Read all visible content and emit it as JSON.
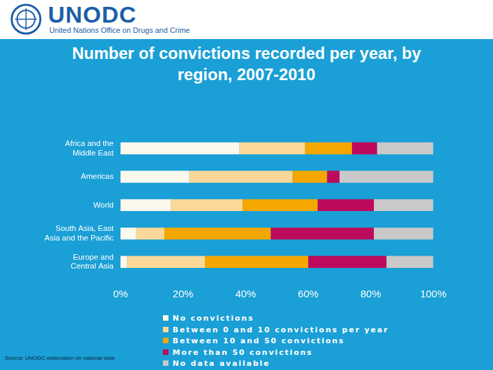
{
  "page": {
    "logo_name": "UNODC",
    "logo_subtitle": "United Nations Office on Drugs and Crime",
    "source": "Source: UNODC elaboration on national data"
  },
  "chart_data": {
    "type": "bar",
    "orientation": "horizontal",
    "stacked": true,
    "grid": false,
    "legend": "bottom",
    "title": "Number of convictions recorded per year, by region, 2007-2010",
    "categories": [
      "Africa and the Middle East",
      "Americas",
      "World",
      "South Asia, East Asia and the Pacific",
      "Europe and Central Asia"
    ],
    "series": [
      {
        "name": "No convictions",
        "color": "#fdf8ee",
        "values": [
          38,
          22,
          16,
          5,
          2
        ]
      },
      {
        "name": "Between 0 and 10 convictions per year",
        "color": "#fcd898",
        "values": [
          21,
          33,
          23,
          9,
          25
        ]
      },
      {
        "name": "Between 10 and 50 convictions",
        "color": "#f4a700",
        "values": [
          15,
          11,
          24,
          34,
          33
        ]
      },
      {
        "name": "More than 50 convictions",
        "color": "#be0a5c",
        "values": [
          8,
          4,
          18,
          33,
          25
        ]
      },
      {
        "name": "No data available",
        "color": "#c9c9c9",
        "values": [
          18,
          30,
          19,
          19,
          15
        ]
      }
    ],
    "xlim": [
      0,
      100
    ],
    "xticks": [
      {
        "value": 0,
        "label": "0%"
      },
      {
        "value": 20,
        "label": "20%"
      },
      {
        "value": 40,
        "label": "40%"
      },
      {
        "value": 60,
        "label": "60%"
      },
      {
        "value": 80,
        "label": "80%"
      },
      {
        "value": 100,
        "label": "100%"
      }
    ]
  }
}
